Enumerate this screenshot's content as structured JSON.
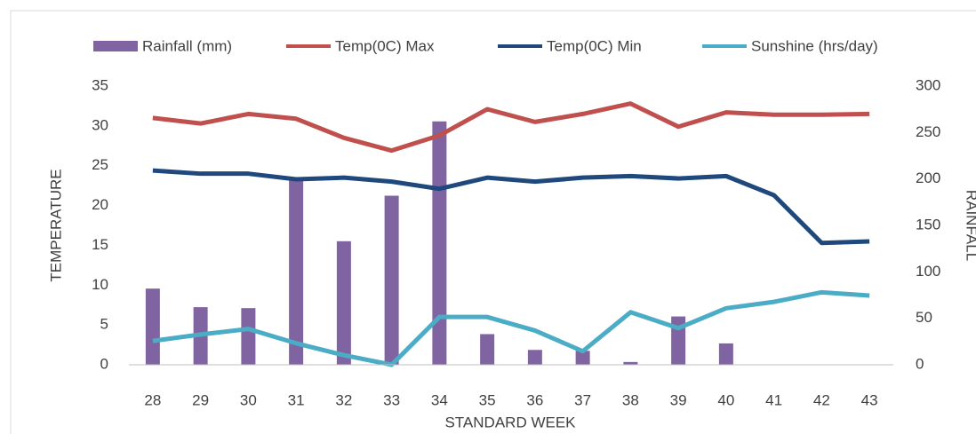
{
  "chart_data": {
    "type": "combo",
    "x_label": "STANDARD WEEK",
    "y_label": "TEMPERATURE",
    "y2_label": "RAINFALL",
    "categories": [
      "28",
      "29",
      "30",
      "31",
      "32",
      "33",
      "34",
      "35",
      "36",
      "37",
      "38",
      "39",
      "40",
      "41",
      "42",
      "43"
    ],
    "ylim": [
      0,
      35
    ],
    "yticks": [
      0,
      5,
      10,
      15,
      20,
      25,
      30,
      35
    ],
    "y2lim": [
      0,
      300
    ],
    "y2ticks": [
      0,
      50,
      100,
      150,
      200,
      250,
      300
    ],
    "grid": false,
    "legend": "top",
    "series": [
      {
        "name": "Rainfall (mm)",
        "type": "bar",
        "axis": "y2",
        "color": "#8064a2",
        "values": [
          82,
          62,
          61,
          202,
          133,
          182,
          262,
          33,
          16,
          15,
          3,
          52,
          23,
          0,
          0,
          0
        ]
      },
      {
        "name": "Temp(0C) Max",
        "type": "line",
        "color": "#c0504d",
        "values": [
          31.0,
          30.3,
          31.5,
          30.9,
          28.5,
          26.9,
          28.8,
          32.1,
          30.5,
          31.5,
          32.8,
          29.9,
          31.7,
          31.4,
          31.4,
          31.5
        ]
      },
      {
        "name": "Temp(0C) Min",
        "type": "line",
        "color": "#1f497d",
        "values": [
          24.4,
          24.0,
          24.0,
          23.3,
          23.5,
          23.0,
          22.1,
          23.5,
          23.0,
          23.5,
          23.7,
          23.4,
          23.7,
          21.3,
          15.3,
          15.5
        ]
      },
      {
        "name": "Sunshine (hrs/day)",
        "type": "line",
        "color": "#4bacc6",
        "values": [
          3.0,
          3.8,
          4.5,
          2.7,
          1.2,
          0,
          6.0,
          6.0,
          4.3,
          1.7,
          6.6,
          4.6,
          7.1,
          7.9,
          9.1,
          8.7
        ]
      }
    ]
  }
}
